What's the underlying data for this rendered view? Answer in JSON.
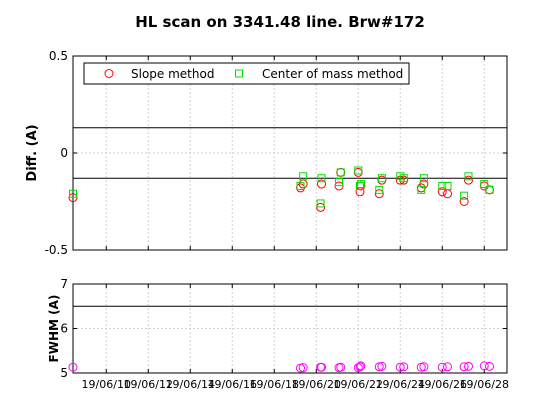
{
  "chart_data": [
    {
      "type": "scatter",
      "title": "HL scan on 3341.48 line. Brw#172",
      "ylabel": "Diff.  (A)",
      "xlabel": "",
      "ylim": [
        -0.5,
        0.5
      ],
      "yticks": [
        "0.5",
        "0",
        "-0.5"
      ],
      "x_ticklabels": [
        "19/06/10",
        "19/06/12",
        "19/06/14",
        "19/06/16",
        "19/06/18",
        "19/06/20",
        "19/06/22",
        "19/06/24",
        "19/06/26",
        "19/06/28"
      ],
      "x_range_days": [
        "2019-06-08 10:00",
        "2019-06-29 02:00"
      ],
      "grid": true,
      "legend_position": "top",
      "reference_lines": [
        0.13,
        -0.13
      ],
      "series": [
        {
          "name": "Slope method",
          "marker": "circle",
          "color": "#ff0000",
          "points": [
            [
              "2019-06-08 10:00",
              -0.23
            ],
            [
              "2019-06-19 06:00",
              -0.18
            ],
            [
              "2019-06-19 09:00",
              -0.16
            ],
            [
              "2019-06-20 05:00",
              -0.28
            ],
            [
              "2019-06-20 06:00",
              -0.16
            ],
            [
              "2019-06-21 02:00",
              -0.17
            ],
            [
              "2019-06-21 04:00",
              -0.1
            ],
            [
              "2019-06-22 00:00",
              -0.1
            ],
            [
              "2019-06-22 02:00",
              -0.2
            ],
            [
              "2019-06-22 03:00",
              -0.17
            ],
            [
              "2019-06-23 00:00",
              -0.21
            ],
            [
              "2019-06-23 03:00",
              -0.14
            ],
            [
              "2019-06-24 00:00",
              -0.14
            ],
            [
              "2019-06-24 04:00",
              -0.14
            ],
            [
              "2019-06-25 00:00",
              -0.18
            ],
            [
              "2019-06-25 03:00",
              -0.16
            ],
            [
              "2019-06-26 00:00",
              -0.2
            ],
            [
              "2019-06-26 06:00",
              -0.21
            ],
            [
              "2019-06-27 01:00",
              -0.25
            ],
            [
              "2019-06-27 06:00",
              -0.14
            ],
            [
              "2019-06-28 00:00",
              -0.17
            ],
            [
              "2019-06-28 06:00",
              -0.19
            ]
          ]
        },
        {
          "name": "Center of mass method",
          "marker": "square",
          "color": "#00e000",
          "points": [
            [
              "2019-06-08 10:00",
              -0.21
            ],
            [
              "2019-06-19 06:00",
              -0.17
            ],
            [
              "2019-06-19 09:00",
              -0.12
            ],
            [
              "2019-06-20 05:00",
              -0.26
            ],
            [
              "2019-06-20 06:00",
              -0.13
            ],
            [
              "2019-06-21 02:00",
              -0.15
            ],
            [
              "2019-06-21 04:00",
              -0.1
            ],
            [
              "2019-06-22 00:00",
              -0.09
            ],
            [
              "2019-06-22 02:00",
              -0.17
            ],
            [
              "2019-06-22 03:00",
              -0.16
            ],
            [
              "2019-06-23 00:00",
              -0.19
            ],
            [
              "2019-06-23 03:00",
              -0.13
            ],
            [
              "2019-06-24 00:00",
              -0.12
            ],
            [
              "2019-06-24 04:00",
              -0.13
            ],
            [
              "2019-06-25 00:00",
              -0.19
            ],
            [
              "2019-06-25 03:00",
              -0.13
            ],
            [
              "2019-06-26 00:00",
              -0.17
            ],
            [
              "2019-06-26 06:00",
              -0.17
            ],
            [
              "2019-06-27 01:00",
              -0.22
            ],
            [
              "2019-06-27 06:00",
              -0.12
            ],
            [
              "2019-06-28 00:00",
              -0.16
            ],
            [
              "2019-06-28 06:00",
              -0.19
            ]
          ]
        }
      ]
    },
    {
      "type": "scatter",
      "title": "",
      "ylabel": "FWHM (A)",
      "xlabel": "",
      "ylim": [
        5,
        7
      ],
      "yticks": [
        "7",
        "6",
        "5"
      ],
      "x_ticklabels": [
        "19/06/10",
        "19/06/12",
        "19/06/14",
        "19/06/16",
        "19/06/18",
        "19/06/20",
        "19/06/22",
        "19/06/24",
        "19/06/26",
        "19/06/28"
      ],
      "x_range_days": [
        "2019-06-08 10:00",
        "2019-06-29 02:00"
      ],
      "grid": true,
      "reference_lines": [
        6.5
      ],
      "series": [
        {
          "marker": "circle",
          "color": "#ff00ff",
          "points": [
            [
              "2019-06-08 10:00",
              5.13
            ],
            [
              "2019-06-19 06:00",
              5.11
            ],
            [
              "2019-06-19 09:00",
              5.12
            ],
            [
              "2019-06-20 05:00",
              5.13
            ],
            [
              "2019-06-20 06:00",
              5.13
            ],
            [
              "2019-06-21 02:00",
              5.12
            ],
            [
              "2019-06-21 04:00",
              5.13
            ],
            [
              "2019-06-22 00:00",
              5.12
            ],
            [
              "2019-06-22 02:00",
              5.14
            ],
            [
              "2019-06-22 03:00",
              5.16
            ],
            [
              "2019-06-23 00:00",
              5.14
            ],
            [
              "2019-06-23 03:00",
              5.15
            ],
            [
              "2019-06-24 00:00",
              5.13
            ],
            [
              "2019-06-24 04:00",
              5.14
            ],
            [
              "2019-06-25 00:00",
              5.13
            ],
            [
              "2019-06-25 03:00",
              5.14
            ],
            [
              "2019-06-26 00:00",
              5.13
            ],
            [
              "2019-06-26 06:00",
              5.14
            ],
            [
              "2019-06-27 01:00",
              5.14
            ],
            [
              "2019-06-27 06:00",
              5.15
            ],
            [
              "2019-06-28 00:00",
              5.16
            ],
            [
              "2019-06-28 06:00",
              5.15
            ]
          ]
        }
      ]
    }
  ]
}
